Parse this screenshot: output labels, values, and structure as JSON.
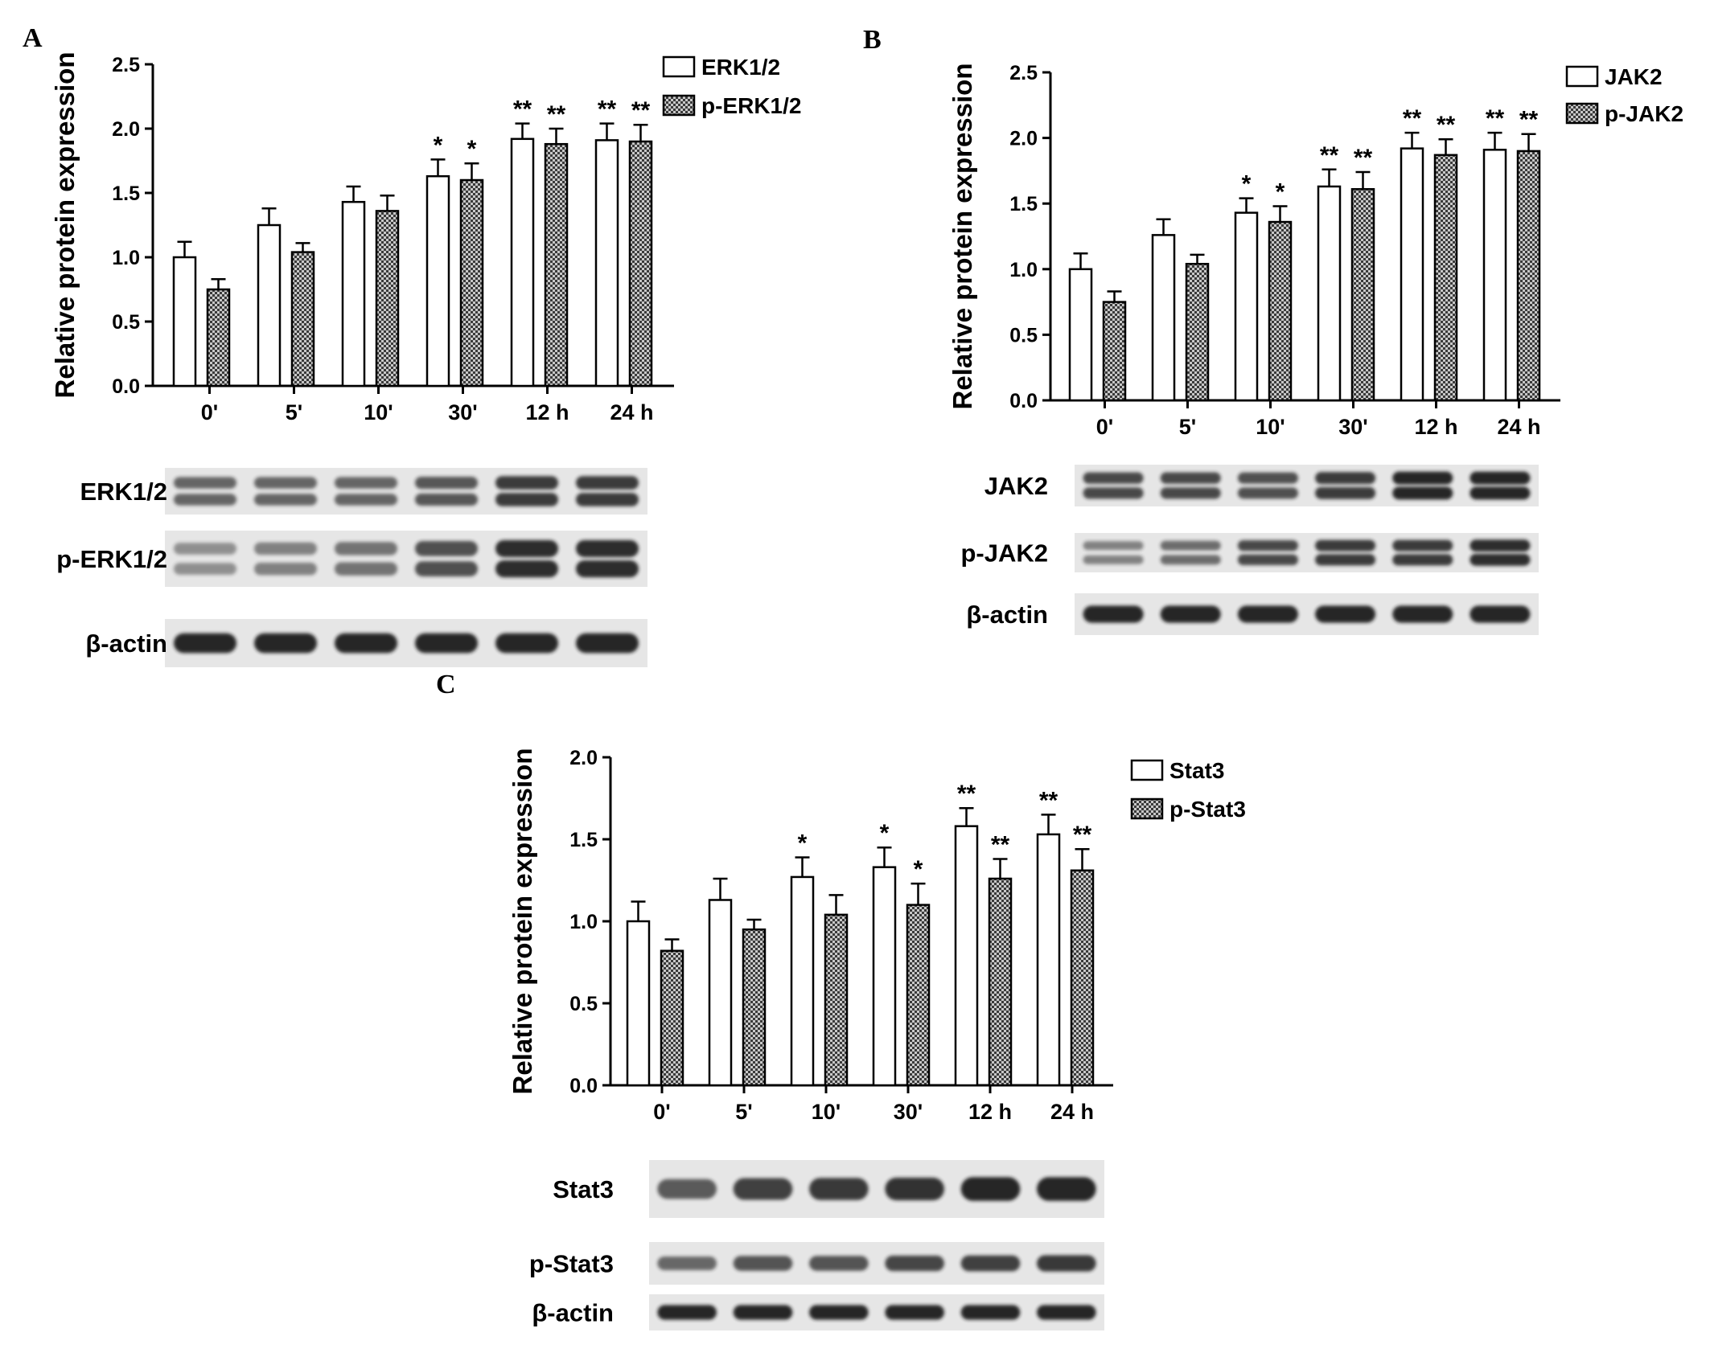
{
  "colors": {
    "bar_total_fill": "#ffffff",
    "bar_phospho_pattern": "crosshatch-gray",
    "axis": "#000000",
    "blot_band": "#1a1a1a",
    "blot_background": "#e6e6e6"
  },
  "chart_data": [
    {
      "panel": "A",
      "type": "bar",
      "ylabel": "Relative protein expression",
      "ylim": [
        0,
        2.5
      ],
      "yticks": [
        "0.0",
        "0.5",
        "1.0",
        "1.5",
        "2.0",
        "2.5"
      ],
      "categories": [
        "0'",
        "5'",
        "10'",
        "30'",
        "12 h",
        "24 h"
      ],
      "legend_position": "top-right",
      "series": [
        {
          "name": "ERK1/2",
          "pattern": "open",
          "values": [
            1.0,
            1.25,
            1.43,
            1.63,
            1.92,
            1.91
          ],
          "errors": [
            0.12,
            0.13,
            0.12,
            0.13,
            0.12,
            0.13
          ],
          "significance": [
            "",
            "",
            "",
            "*",
            "**",
            "**"
          ]
        },
        {
          "name": "p-ERK1/2",
          "pattern": "hatched",
          "values": [
            0.75,
            1.04,
            1.36,
            1.6,
            1.88,
            1.9
          ],
          "errors": [
            0.08,
            0.07,
            0.12,
            0.13,
            0.12,
            0.13
          ],
          "significance": [
            "",
            "",
            "",
            "*",
            "**",
            "**"
          ]
        }
      ],
      "blot": {
        "rows": [
          {
            "label": "ERK1/2",
            "doublet": true,
            "intensity": [
              0.55,
              0.55,
              0.55,
              0.65,
              0.85,
              0.85
            ]
          },
          {
            "label": "p-ERK1/2",
            "doublet": true,
            "intensity": [
              0.25,
              0.35,
              0.45,
              0.7,
              0.95,
              0.95
            ]
          },
          {
            "label": "β-actin",
            "doublet": false,
            "intensity": [
              1,
              1,
              1,
              1,
              1,
              1
            ]
          }
        ]
      }
    },
    {
      "panel": "B",
      "type": "bar",
      "ylabel": "Relative protein expression",
      "ylim": [
        0,
        2.5
      ],
      "yticks": [
        "0.0",
        "0.5",
        "1.0",
        "1.5",
        "2.0",
        "2.5"
      ],
      "categories": [
        "0'",
        "5'",
        "10'",
        "30'",
        "12 h",
        "24 h"
      ],
      "legend_position": "top-right",
      "series": [
        {
          "name": "JAK2",
          "pattern": "open",
          "values": [
            1.0,
            1.26,
            1.43,
            1.63,
            1.92,
            1.91
          ],
          "errors": [
            0.12,
            0.12,
            0.11,
            0.13,
            0.12,
            0.13
          ],
          "significance": [
            "",
            "",
            "*",
            "**",
            "**",
            "**"
          ]
        },
        {
          "name": "p-JAK2",
          "pattern": "hatched",
          "values": [
            0.75,
            1.04,
            1.36,
            1.61,
            1.87,
            1.9
          ],
          "errors": [
            0.08,
            0.07,
            0.12,
            0.13,
            0.12,
            0.13
          ],
          "significance": [
            "",
            "",
            "*",
            "**",
            "**",
            "**"
          ]
        }
      ],
      "blot": {
        "rows": [
          {
            "label": "JAK2",
            "doublet": true,
            "intensity": [
              0.75,
              0.75,
              0.7,
              0.85,
              1.0,
              1.0
            ]
          },
          {
            "label": "p-JAK2",
            "doublet": true,
            "intensity": [
              0.35,
              0.5,
              0.75,
              0.85,
              0.85,
              0.95
            ]
          },
          {
            "label": "β-actin",
            "doublet": false,
            "intensity": [
              1,
              1,
              1,
              1,
              1,
              1
            ]
          }
        ]
      }
    },
    {
      "panel": "C",
      "type": "bar",
      "ylabel": "Relative protein expression",
      "ylim": [
        0,
        2.0
      ],
      "yticks": [
        "0.0",
        "0.5",
        "1.0",
        "1.5",
        "2.0"
      ],
      "categories": [
        "0'",
        "5'",
        "10'",
        "30'",
        "12 h",
        "24 h"
      ],
      "legend_position": "top-right",
      "series": [
        {
          "name": "Stat3",
          "pattern": "open",
          "values": [
            1.0,
            1.13,
            1.27,
            1.33,
            1.58,
            1.53
          ],
          "errors": [
            0.12,
            0.13,
            0.12,
            0.12,
            0.11,
            0.12
          ],
          "significance": [
            "",
            "",
            "*",
            "*",
            "**",
            "**"
          ]
        },
        {
          "name": "p-Stat3",
          "pattern": "hatched",
          "values": [
            0.82,
            0.95,
            1.04,
            1.1,
            1.26,
            1.31
          ],
          "errors": [
            0.07,
            0.06,
            0.12,
            0.13,
            0.12,
            0.13
          ],
          "significance": [
            "",
            "",
            "",
            "*",
            "**",
            "**"
          ]
        }
      ],
      "blot": {
        "rows": [
          {
            "label": "Stat3",
            "doublet": false,
            "intensity": [
              0.6,
              0.8,
              0.85,
              0.9,
              1.0,
              1.0
            ]
          },
          {
            "label": "p-Stat3",
            "doublet": false,
            "intensity": [
              0.5,
              0.65,
              0.65,
              0.75,
              0.8,
              0.85
            ]
          },
          {
            "label": "β-actin",
            "doublet": false,
            "intensity": [
              1,
              1,
              1,
              1,
              1,
              1
            ]
          }
        ]
      }
    }
  ]
}
